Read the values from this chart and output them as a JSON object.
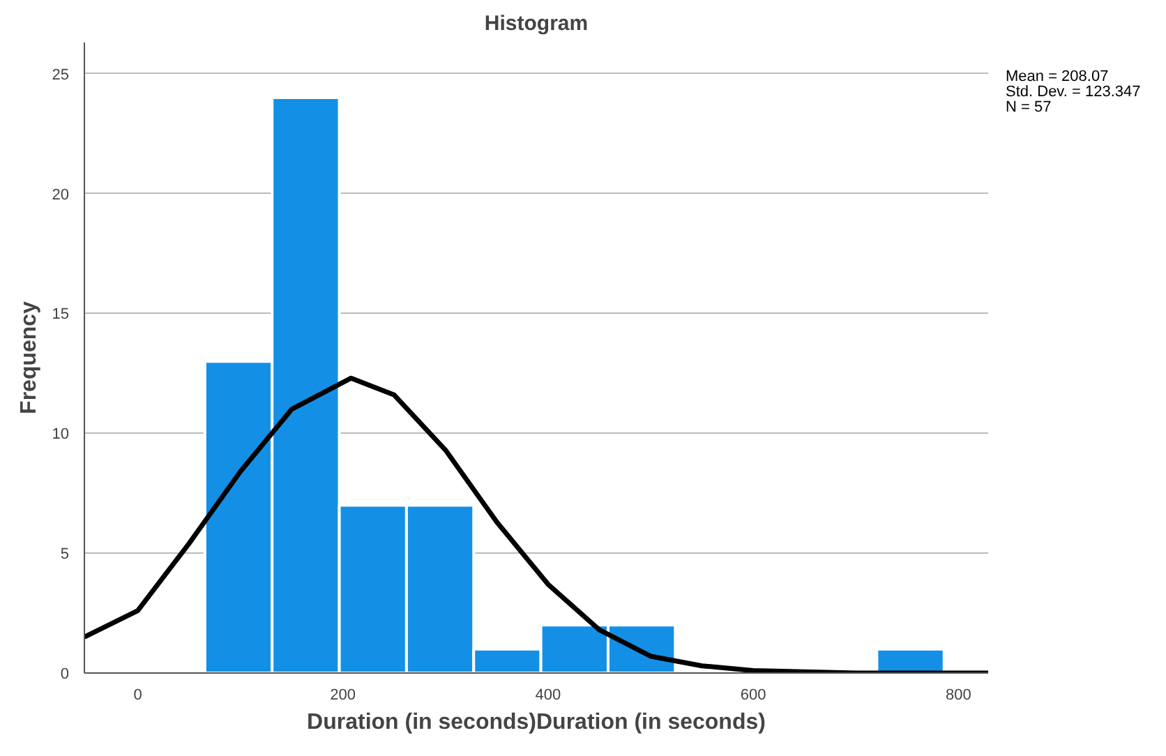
{
  "chart_data": {
    "type": "histogram",
    "title": "Histogram",
    "xlabel": "Duration (in seconds)Duration (in seconds)",
    "ylabel": "Frequency",
    "bins": [
      65.5,
      131,
      196.5,
      262,
      327.5,
      393,
      458.5,
      524,
      589.5,
      655,
      720.5,
      786
    ],
    "values": [
      13,
      24,
      7,
      7,
      1,
      2,
      2,
      0,
      0,
      0,
      1
    ],
    "color": "#1390e6",
    "series": [
      {
        "type": "line",
        "color": "#000000",
        "x": [
          -52,
          0,
          50,
          100,
          150,
          208,
          250,
          300,
          350,
          400,
          450,
          500,
          550,
          600,
          700,
          829
        ],
        "values": [
          1.5,
          2.6,
          5.4,
          8.4,
          11.0,
          12.3,
          11.6,
          9.3,
          6.3,
          3.7,
          1.8,
          0.7,
          0.3,
          0.1,
          0,
          0
        ]
      }
    ],
    "xlim": [
      -52,
      829
    ],
    "ylim": [
      0,
      26.3
    ],
    "xticks": [
      0,
      200,
      400,
      600,
      800
    ],
    "yticks": [
      0,
      5,
      10,
      15,
      20,
      25
    ],
    "grid": "y",
    "annotations": [
      "Mean = 208.07\nStd. Dev. = 123.347\nN = 57"
    ]
  }
}
